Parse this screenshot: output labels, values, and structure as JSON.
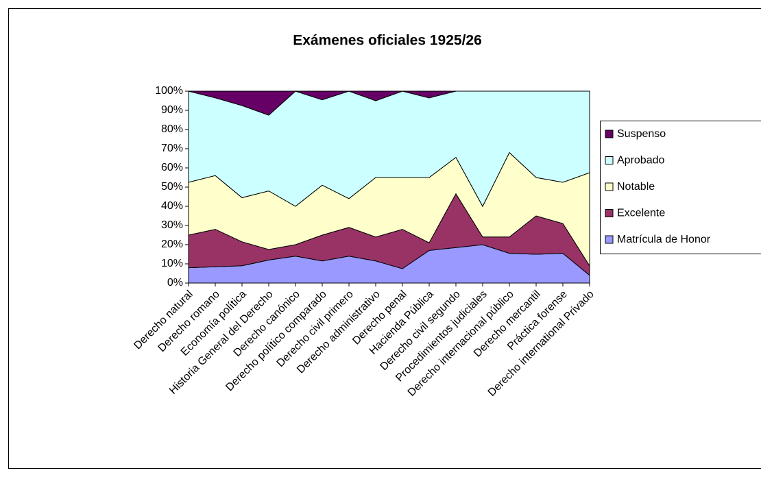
{
  "chart_data": {
    "type": "stacked_area_percent",
    "title": "Exámenes oficiales 1925/26",
    "categories": [
      "Derecho natural",
      "Derecho romano",
      "Economía política",
      "Historia General del Derecho",
      "Derecho canónico",
      "Derecho político comparado",
      "Derecho civil primero",
      "Derecho administrativo",
      "Derecho penal",
      "Hacienda Pública",
      "Derecho civil segundo",
      "Procedimientos judiciales",
      "Derecho internacional público",
      "Derecho mercantil",
      "Práctica forense",
      "Derecho international Privado"
    ],
    "series": [
      {
        "name": "Matrícula de Honor",
        "color": "#9999ff",
        "values": [
          8,
          8.5,
          9,
          12,
          14,
          11.5,
          14,
          11.5,
          7.5,
          17,
          18.5,
          20,
          15.5,
          15,
          15.5,
          4
        ]
      },
      {
        "name": "Excelente",
        "color": "#993366",
        "values": [
          17,
          19.5,
          12.5,
          5.5,
          6,
          13.5,
          15,
          12.5,
          20.5,
          4,
          28,
          4,
          8.5,
          20,
          15.5,
          5
        ]
      },
      {
        "name": "Notable",
        "color": "#ffffcc",
        "values": [
          27.5,
          28,
          23,
          30.5,
          20,
          26,
          15,
          31,
          27,
          34,
          19,
          16,
          44,
          20,
          21.5,
          48.5
        ]
      },
      {
        "name": "Aprobado",
        "color": "#ccffff",
        "values": [
          47.5,
          40.5,
          48,
          39.5,
          60,
          44.5,
          56,
          40,
          45,
          41.5,
          34.5,
          60,
          32,
          45,
          47.5,
          42.5
        ]
      },
      {
        "name": "Suspenso",
        "color": "#660066",
        "values": [
          0,
          3.5,
          7.5,
          12.5,
          0,
          4.5,
          0,
          5,
          0,
          3.5,
          0,
          0,
          0,
          0,
          0,
          0
        ]
      }
    ],
    "ylim": [
      0,
      100
    ],
    "yticks": [
      {
        "value": 0,
        "label": "0%"
      },
      {
        "value": 10,
        "label": "10%"
      },
      {
        "value": 20,
        "label": "20%"
      },
      {
        "value": 30,
        "label": "30%"
      },
      {
        "value": 40,
        "label": "40%"
      },
      {
        "value": 50,
        "label": "50%"
      },
      {
        "value": 60,
        "label": "60%"
      },
      {
        "value": 70,
        "label": "70%"
      },
      {
        "value": 80,
        "label": "80%"
      },
      {
        "value": 90,
        "label": "90%"
      },
      {
        "value": 100,
        "label": "100%"
      }
    ],
    "legend": "right"
  }
}
